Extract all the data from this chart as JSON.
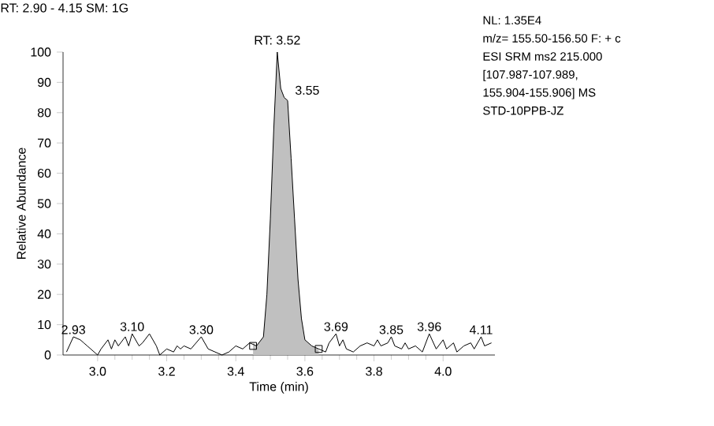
{
  "chart_data": {
    "type": "line",
    "title": "RT: 2.90 - 4.15   SM: 1G",
    "xlabel": "Time (min)",
    "ylabel": "Relative Abundance",
    "xlim": [
      2.9,
      4.15
    ],
    "xticks": [
      {
        "value": 3.0,
        "label": "3.0"
      },
      {
        "value": 3.2,
        "label": "3.2"
      },
      {
        "value": 3.4,
        "label": "3.4"
      },
      {
        "value": 3.6,
        "label": "3.6"
      },
      {
        "value": 3.8,
        "label": "3.8"
      },
      {
        "value": 4.0,
        "label": "4.0"
      }
    ],
    "ylim": [
      0,
      100
    ],
    "yticks": [
      0,
      10,
      20,
      30,
      40,
      50,
      60,
      70,
      80,
      90,
      100
    ],
    "series": [
      {
        "type": "area",
        "color": "#c0c0c0",
        "x": [
          3.45,
          3.46,
          3.48,
          3.49,
          3.5,
          3.51,
          3.52,
          3.53,
          3.54,
          3.55,
          3.56,
          3.57,
          3.58,
          3.59,
          3.6,
          3.62,
          3.64
        ],
        "values": [
          4,
          3,
          6,
          20,
          45,
          75,
          100,
          88,
          85,
          84,
          65,
          45,
          25,
          12,
          5,
          3,
          2
        ]
      },
      {
        "color": "#000000",
        "x": [
          2.91,
          2.93,
          2.95,
          2.96,
          2.97,
          2.98,
          3.0,
          3.01,
          3.03,
          3.04,
          3.05,
          3.06,
          3.08,
          3.09,
          3.1,
          3.12,
          3.13,
          3.15,
          3.17,
          3.18,
          3.2,
          3.22,
          3.23,
          3.24,
          3.25,
          3.27,
          3.3,
          3.32,
          3.34,
          3.36,
          3.38,
          3.4,
          3.42,
          3.44,
          3.46,
          3.48,
          3.49,
          3.5,
          3.51,
          3.52,
          3.53,
          3.54,
          3.55,
          3.56,
          3.57,
          3.58,
          3.59,
          3.6,
          3.62,
          3.64,
          3.66,
          3.67,
          3.69,
          3.7,
          3.71,
          3.72,
          3.74,
          3.76,
          3.78,
          3.8,
          3.81,
          3.82,
          3.84,
          3.85,
          3.86,
          3.88,
          3.89,
          3.9,
          3.92,
          3.94,
          3.96,
          3.98,
          4.0,
          4.01,
          4.03,
          4.04,
          4.06,
          4.08,
          4.09,
          4.11,
          4.12,
          4.14
        ],
        "values": [
          1,
          6,
          5,
          4,
          3,
          2,
          0,
          2,
          5,
          2,
          5,
          3,
          6,
          3,
          7,
          3,
          4,
          7,
          3,
          0,
          2,
          1,
          3,
          2,
          3,
          2,
          6,
          2,
          1,
          0,
          1,
          3,
          2,
          4,
          3,
          6,
          20,
          45,
          75,
          100,
          88,
          85,
          84,
          65,
          45,
          25,
          12,
          5,
          3,
          2,
          1,
          4,
          7,
          3,
          5,
          2,
          1,
          3,
          4,
          3,
          5,
          3,
          4,
          6,
          3,
          2,
          4,
          2,
          3,
          1,
          7,
          2,
          5,
          2,
          4,
          1,
          3,
          4,
          2,
          6,
          3,
          4
        ]
      },
      {
        "type": "scatter",
        "marker": "square",
        "color": "#000000",
        "x": [
          3.45,
          3.64
        ],
        "values": [
          3,
          2
        ]
      }
    ],
    "annotations": [
      "NL: 1.35E4",
      "m/z= 155.50-156.50 F: + c",
      "ESI SRM ms2 215.000",
      "[107.987-107.989,",
      "155.904-155.906]  MS",
      "STD-10PPB-JZ",
      {
        "text": "RT: 3.52",
        "x": 3.52,
        "y": 100
      },
      {
        "text": "3.55",
        "x": 3.55,
        "y": 84
      },
      {
        "text": "2.93",
        "x": 2.93,
        "y": 6
      },
      {
        "text": "3.10",
        "x": 3.1,
        "y": 7
      },
      {
        "text": "3.30",
        "x": 3.3,
        "y": 6
      },
      {
        "text": "3.69",
        "x": 3.69,
        "y": 7
      },
      {
        "text": "3.85",
        "x": 3.85,
        "y": 6
      },
      {
        "text": "3.96",
        "x": 3.96,
        "y": 7
      },
      {
        "text": "4.11",
        "x": 4.11,
        "y": 6
      }
    ]
  }
}
